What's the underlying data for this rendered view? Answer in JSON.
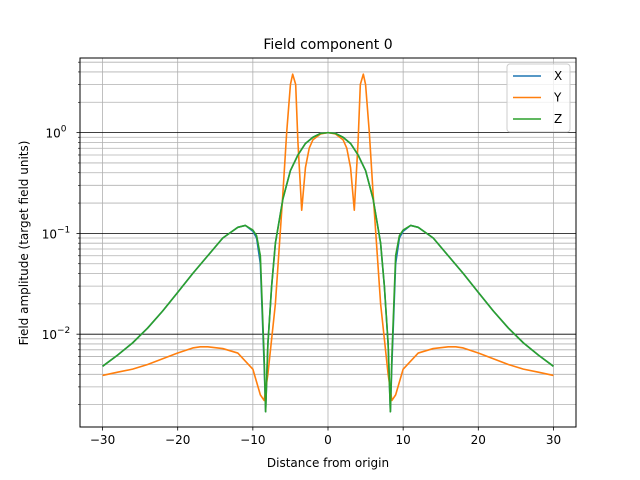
{
  "chart_data": {
    "type": "line",
    "title": "Field component 0",
    "xlabel": "Distance from origin",
    "ylabel": "Field amplitude (target field units)",
    "xlim": [
      -33,
      33
    ],
    "ylim": [
      0.0012,
      5.5
    ],
    "yscale": "log",
    "grid": "major and minor",
    "legend_position": "top-right",
    "x_ticks": [
      -30,
      -20,
      -10,
      0,
      10,
      20,
      30
    ],
    "x_tick_labels": [
      "−30",
      "−20",
      "−10",
      "0",
      "10",
      "20",
      "30"
    ],
    "y_ticks": [
      {
        "value": 0.01,
        "base": "10",
        "exp": "−2"
      },
      {
        "value": 0.1,
        "base": "10",
        "exp": "−1"
      },
      {
        "value": 1,
        "base": "10",
        "exp": "0"
      }
    ],
    "series": [
      {
        "name": "X",
        "color": "#1f77b4",
        "x": [
          0,
          1,
          2,
          3,
          4,
          5,
          6,
          7,
          7.5,
          8,
          8.3,
          8.5,
          9,
          9.5,
          10,
          11,
          12,
          14,
          16,
          18,
          20,
          22,
          24,
          26,
          28,
          30
        ],
        "y": [
          1.0,
          0.98,
          0.9,
          0.78,
          0.6,
          0.42,
          0.22,
          0.08,
          0.03,
          0.008,
          0.0017,
          0.005,
          0.05,
          0.09,
          0.105,
          0.12,
          0.115,
          0.09,
          0.06,
          0.04,
          0.026,
          0.017,
          0.0115,
          0.0082,
          0.0062,
          0.0048
        ]
      },
      {
        "name": "Y",
        "color": "#ff7f0e",
        "x": [
          0,
          1,
          2,
          2.5,
          3,
          3.5,
          4,
          4.3,
          4.7,
          5,
          5.5,
          6,
          7,
          8,
          8.5,
          9,
          10,
          12,
          14,
          16,
          17,
          18,
          20,
          22,
          24,
          26,
          28,
          30
        ],
        "y": [
          1.0,
          0.97,
          0.85,
          0.7,
          0.45,
          0.17,
          0.8,
          3.0,
          3.8,
          3.0,
          1.0,
          0.25,
          0.02,
          0.004,
          0.0022,
          0.0025,
          0.0045,
          0.0065,
          0.0072,
          0.0075,
          0.0075,
          0.0073,
          0.0065,
          0.0057,
          0.005,
          0.0045,
          0.0042,
          0.0039
        ]
      },
      {
        "name": "Z",
        "color": "#2ca02c",
        "x": [
          0,
          1,
          2,
          3,
          4,
          5,
          6,
          7,
          7.5,
          8,
          8.3,
          8.5,
          9,
          9.5,
          10,
          11,
          12,
          14,
          16,
          18,
          20,
          22,
          24,
          26,
          28,
          30
        ],
        "y": [
          1.0,
          0.98,
          0.9,
          0.78,
          0.6,
          0.42,
          0.22,
          0.08,
          0.03,
          0.008,
          0.0017,
          0.006,
          0.06,
          0.095,
          0.108,
          0.12,
          0.115,
          0.09,
          0.06,
          0.04,
          0.026,
          0.017,
          0.0115,
          0.0082,
          0.0062,
          0.0048
        ]
      }
    ]
  }
}
